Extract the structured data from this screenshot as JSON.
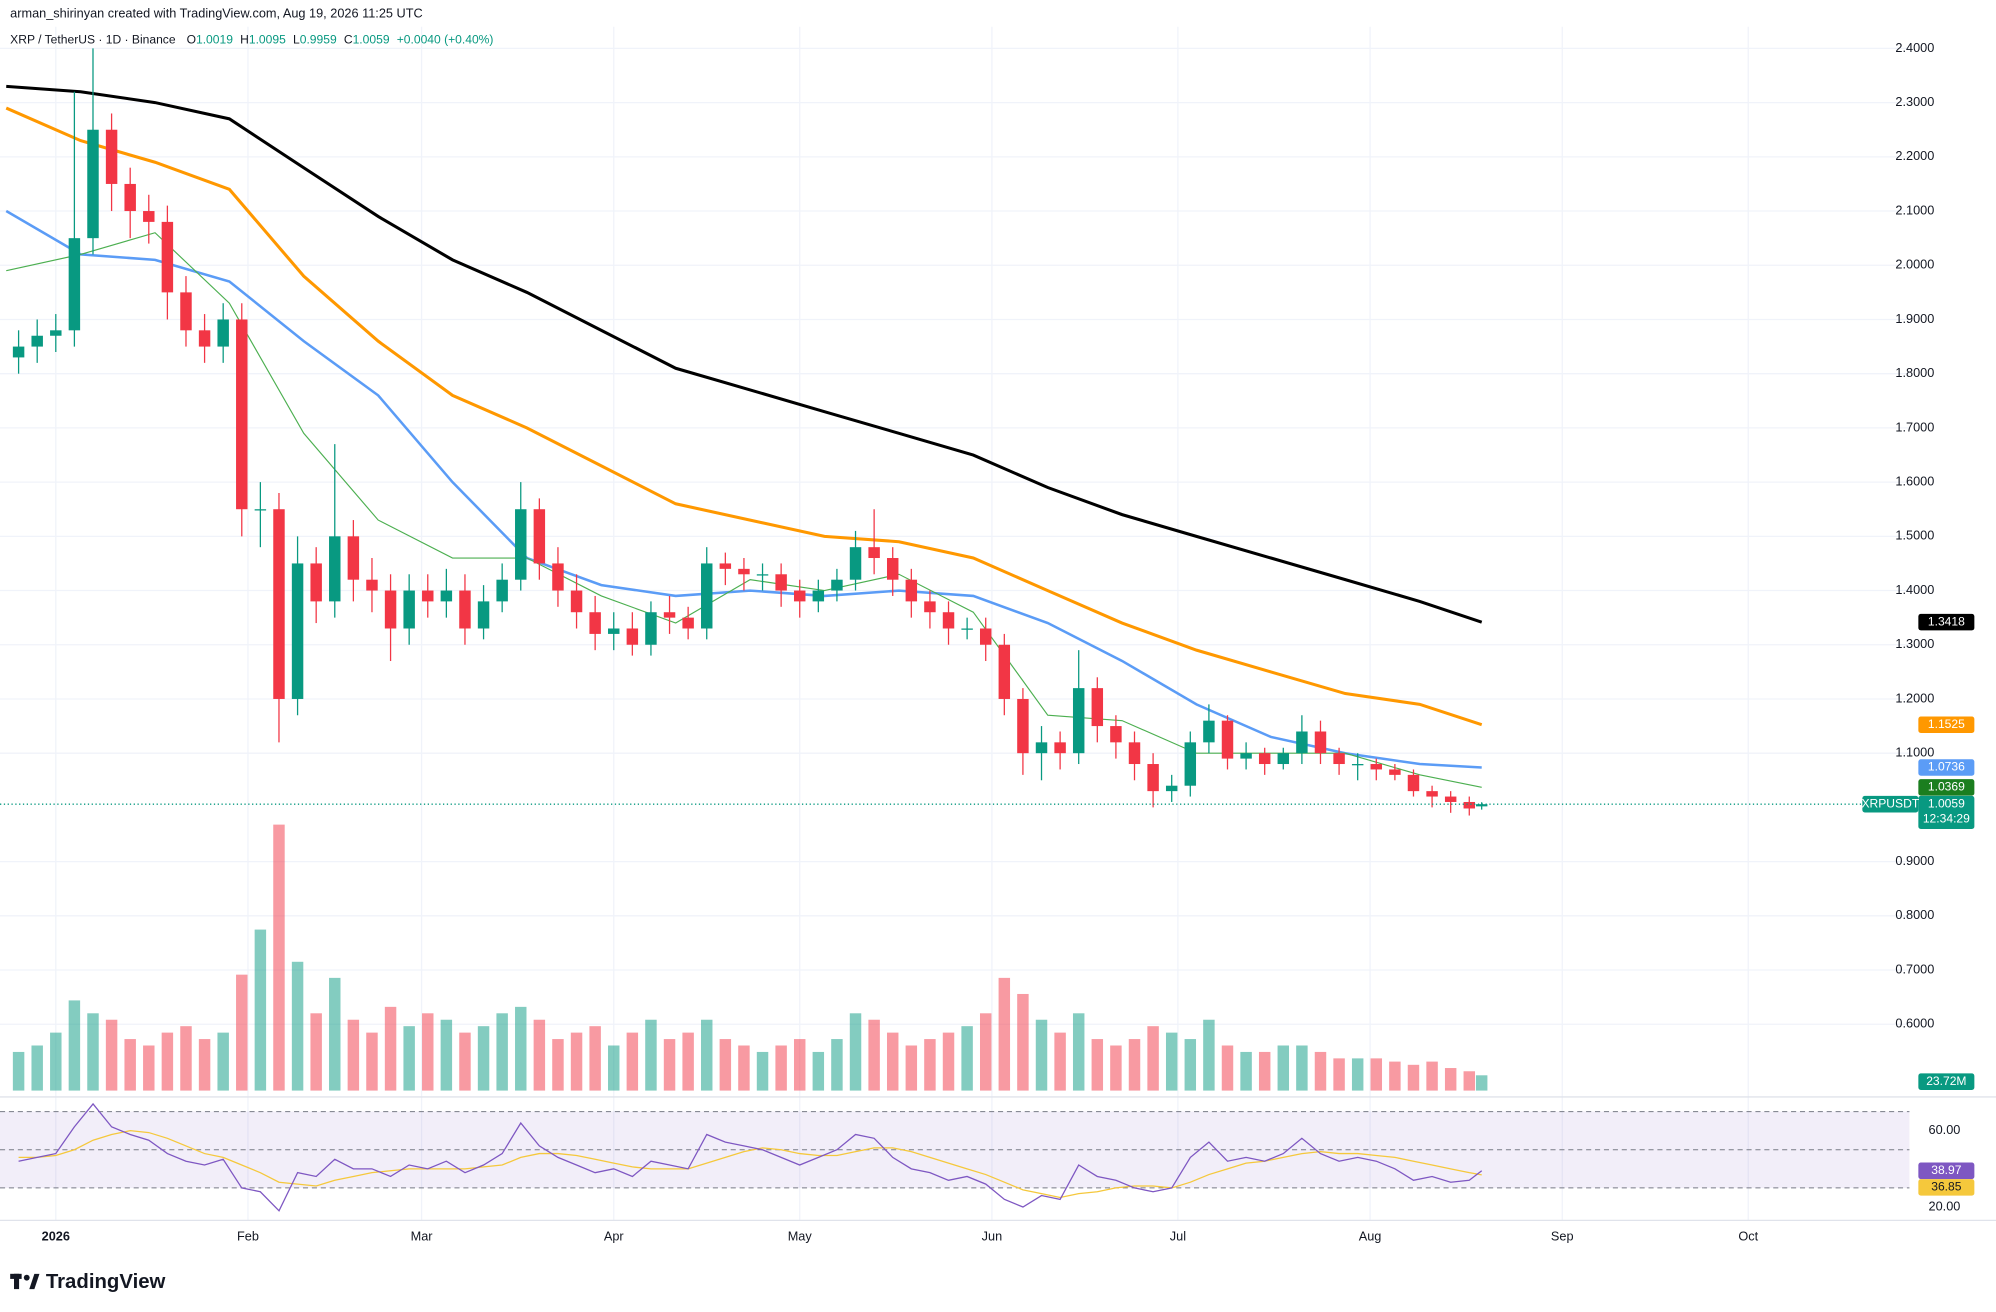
{
  "header": {
    "watermark": "arman_shirinyan created with TradingView.com, Aug 19, 2026 11:25 UTC",
    "symbol": "XRP / TetherUS · 1D · Binance",
    "legend": [
      {
        "key": "O",
        "value": "1.0019"
      },
      {
        "key": "H",
        "value": "1.0095"
      },
      {
        "key": "L",
        "value": "0.9959"
      },
      {
        "key": "C",
        "value": "1.0059"
      }
    ],
    "change": "+0.0040 (+0.40%)"
  },
  "footer": {
    "brand": "TradingView"
  },
  "chart_data": {
    "type": "candlestick",
    "colors": {
      "up": "#089981",
      "down": "#f23645"
    },
    "x": [
      -6,
      -3,
      0,
      3,
      6,
      9,
      12,
      15,
      18,
      21,
      24,
      27,
      30,
      33,
      36,
      39,
      42,
      45,
      48,
      51,
      54,
      57,
      60,
      63,
      66,
      69,
      72,
      75,
      78,
      81,
      84,
      87,
      90,
      93,
      96,
      99,
      102,
      105,
      108,
      111,
      114,
      117,
      120,
      123,
      126,
      129,
      132,
      135,
      138,
      141,
      144,
      147,
      150,
      153,
      156,
      159,
      162,
      165,
      168,
      171,
      174,
      177,
      180,
      183,
      186,
      189,
      192,
      195,
      198,
      201,
      204,
      207,
      210,
      213,
      216,
      219,
      222,
      225,
      228,
      230
    ],
    "open": [
      1.83,
      1.85,
      1.87,
      1.88,
      2.05,
      2.25,
      2.15,
      2.1,
      2.08,
      1.95,
      1.88,
      1.85,
      1.9,
      1.55,
      1.55,
      1.2,
      1.45,
      1.38,
      1.5,
      1.42,
      1.4,
      1.33,
      1.4,
      1.38,
      1.4,
      1.33,
      1.38,
      1.42,
      1.55,
      1.45,
      1.4,
      1.36,
      1.32,
      1.33,
      1.3,
      1.36,
      1.35,
      1.33,
      1.45,
      1.44,
      1.43,
      1.43,
      1.4,
      1.38,
      1.4,
      1.42,
      1.48,
      1.46,
      1.42,
      1.38,
      1.36,
      1.33,
      1.33,
      1.3,
      1.2,
      1.1,
      1.12,
      1.1,
      1.22,
      1.15,
      1.12,
      1.08,
      1.03,
      1.04,
      1.12,
      1.16,
      1.09,
      1.1,
      1.08,
      1.1,
      1.14,
      1.1,
      1.08,
      1.08,
      1.07,
      1.06,
      1.03,
      1.02,
      1.01,
      1.0019
    ],
    "high": [
      1.88,
      1.9,
      1.91,
      2.32,
      2.4,
      2.28,
      2.18,
      2.13,
      2.11,
      1.98,
      1.91,
      1.93,
      1.93,
      1.6,
      1.58,
      1.5,
      1.48,
      1.67,
      1.53,
      1.46,
      1.43,
      1.43,
      1.43,
      1.44,
      1.43,
      1.41,
      1.45,
      1.6,
      1.57,
      1.48,
      1.43,
      1.39,
      1.36,
      1.36,
      1.38,
      1.39,
      1.37,
      1.48,
      1.47,
      1.46,
      1.45,
      1.45,
      1.42,
      1.42,
      1.44,
      1.51,
      1.55,
      1.48,
      1.44,
      1.4,
      1.38,
      1.35,
      1.35,
      1.32,
      1.22,
      1.15,
      1.14,
      1.29,
      1.24,
      1.17,
      1.14,
      1.1,
      1.06,
      1.14,
      1.19,
      1.17,
      1.12,
      1.11,
      1.11,
      1.17,
      1.16,
      1.11,
      1.1,
      1.09,
      1.08,
      1.07,
      1.04,
      1.03,
      1.02,
      1.0095
    ],
    "low": [
      1.8,
      1.82,
      1.84,
      1.85,
      2.02,
      2.1,
      2.05,
      2.04,
      1.9,
      1.85,
      1.82,
      1.82,
      1.5,
      1.48,
      1.12,
      1.17,
      1.34,
      1.35,
      1.38,
      1.36,
      1.27,
      1.3,
      1.35,
      1.35,
      1.3,
      1.31,
      1.36,
      1.4,
      1.42,
      1.37,
      1.33,
      1.29,
      1.29,
      1.28,
      1.28,
      1.32,
      1.31,
      1.31,
      1.41,
      1.4,
      1.4,
      1.37,
      1.35,
      1.36,
      1.38,
      1.4,
      1.43,
      1.39,
      1.35,
      1.33,
      1.3,
      1.31,
      1.27,
      1.17,
      1.06,
      1.05,
      1.07,
      1.08,
      1.12,
      1.09,
      1.05,
      1.0,
      1.01,
      1.02,
      1.1,
      1.07,
      1.07,
      1.06,
      1.07,
      1.08,
      1.08,
      1.06,
      1.05,
      1.05,
      1.05,
      1.02,
      1.0,
      0.99,
      0.985,
      0.9959
    ],
    "close": [
      1.85,
      1.87,
      1.88,
      2.05,
      2.25,
      2.15,
      2.1,
      2.08,
      1.95,
      1.88,
      1.85,
      1.9,
      1.55,
      1.55,
      1.2,
      1.45,
      1.38,
      1.5,
      1.42,
      1.4,
      1.33,
      1.4,
      1.38,
      1.4,
      1.33,
      1.38,
      1.42,
      1.55,
      1.45,
      1.4,
      1.36,
      1.32,
      1.33,
      1.3,
      1.36,
      1.35,
      1.33,
      1.45,
      1.44,
      1.43,
      1.43,
      1.4,
      1.38,
      1.4,
      1.42,
      1.48,
      1.46,
      1.42,
      1.38,
      1.36,
      1.33,
      1.33,
      1.3,
      1.2,
      1.1,
      1.12,
      1.1,
      1.22,
      1.15,
      1.12,
      1.08,
      1.03,
      1.04,
      1.12,
      1.16,
      1.09,
      1.1,
      1.08,
      1.1,
      1.14,
      1.1,
      1.08,
      1.08,
      1.07,
      1.06,
      1.03,
      1.02,
      1.01,
      0.998,
      1.0059
    ],
    "symbol_tag": "XRPUSDT",
    "countdown": "12:34:29",
    "ma_x": [
      -8,
      4,
      16,
      28,
      40,
      52,
      64,
      76,
      88,
      100,
      112,
      124,
      136,
      148,
      160,
      172,
      184,
      196,
      208,
      220,
      230
    ],
    "ma": [
      {
        "color": "#000000",
        "values": [
          2.33,
          2.32,
          2.3,
          2.27,
          2.18,
          2.09,
          2.01,
          1.95,
          1.88,
          1.81,
          1.77,
          1.73,
          1.69,
          1.65,
          1.59,
          1.54,
          1.5,
          1.46,
          1.42,
          1.38,
          1.3418
        ]
      },
      {
        "color": "#ff9800",
        "values": [
          2.29,
          2.23,
          2.19,
          2.14,
          1.98,
          1.86,
          1.76,
          1.7,
          1.63,
          1.56,
          1.53,
          1.5,
          1.49,
          1.46,
          1.4,
          1.34,
          1.29,
          1.25,
          1.21,
          1.19,
          1.1525
        ]
      },
      {
        "color": "#5b9cf6",
        "values": [
          2.1,
          2.02,
          2.01,
          1.97,
          1.86,
          1.76,
          1.6,
          1.46,
          1.41,
          1.39,
          1.4,
          1.39,
          1.4,
          1.39,
          1.34,
          1.27,
          1.19,
          1.13,
          1.1,
          1.08,
          1.0736
        ]
      },
      {
        "color": "#4caf50",
        "values": [
          1.99,
          2.02,
          2.06,
          1.93,
          1.69,
          1.53,
          1.46,
          1.46,
          1.39,
          1.34,
          1.42,
          1.4,
          1.43,
          1.36,
          1.17,
          1.16,
          1.1,
          1.1,
          1.1,
          1.06,
          1.0369
        ]
      }
    ],
    "volume": {
      "values": [
        60,
        70,
        90,
        140,
        120,
        110,
        80,
        70,
        90,
        100,
        80,
        90,
        180,
        250,
        413,
        200,
        120,
        175,
        110,
        90,
        130,
        100,
        120,
        110,
        90,
        100,
        120,
        130,
        110,
        80,
        90,
        100,
        70,
        90,
        110,
        80,
        90,
        110,
        80,
        70,
        60,
        70,
        80,
        60,
        80,
        120,
        110,
        90,
        70,
        80,
        90,
        100,
        120,
        175,
        150,
        110,
        90,
        120,
        80,
        70,
        80,
        100,
        90,
        80,
        110,
        70,
        60,
        60,
        70,
        70,
        60,
        50,
        50,
        50,
        45,
        40,
        45,
        35,
        30,
        23.72
      ],
      "last_label": "23.72M"
    },
    "xlim": [
      -9,
      299
    ],
    "xticks": [
      {
        "value": 0,
        "label": "2026"
      },
      {
        "value": 31,
        "label": "Feb"
      },
      {
        "value": 59,
        "label": "Mar"
      },
      {
        "value": 90,
        "label": "Apr"
      },
      {
        "value": 120,
        "label": "May"
      },
      {
        "value": 151,
        "label": "Jun"
      },
      {
        "value": 181,
        "label": "Jul"
      },
      {
        "value": 212,
        "label": "Aug"
      },
      {
        "value": 243,
        "label": "Sep"
      },
      {
        "value": 273,
        "label": "Oct"
      }
    ],
    "ylim": [
      0.48,
      2.44
    ],
    "yticks": [
      {
        "value": 0.6,
        "label": "0.6000"
      },
      {
        "value": 0.7,
        "label": "0.7000"
      },
      {
        "value": 0.8,
        "label": "0.8000"
      },
      {
        "value": 0.9,
        "label": "0.9000"
      },
      {
        "value": 1.1,
        "label": "1.1000"
      },
      {
        "value": 1.2,
        "label": "1.2000"
      },
      {
        "value": 1.3,
        "label": "1.3000"
      },
      {
        "value": 1.4,
        "label": "1.4000"
      },
      {
        "value": 1.5,
        "label": "1.5000"
      },
      {
        "value": 1.6,
        "label": "1.6000"
      },
      {
        "value": 1.7,
        "label": "1.7000"
      },
      {
        "value": 1.8,
        "label": "1.8000"
      },
      {
        "value": 1.9,
        "label": "1.9000"
      },
      {
        "value": 2.0,
        "label": "2.0000"
      },
      {
        "value": 2.1,
        "label": "2.1000"
      },
      {
        "value": 2.2,
        "label": "2.2000"
      },
      {
        "value": 2.3,
        "label": "2.3000"
      },
      {
        "value": 2.4,
        "label": "2.4000"
      }
    ],
    "grid": true,
    "rsi": {
      "color": "#7e57c2",
      "ylim": [
        15,
        75
      ],
      "yticks": [
        {
          "value": 20,
          "label": "20.00"
        },
        {
          "value": 60,
          "label": "60.00"
        }
      ],
      "levels": [
        30,
        50,
        70
      ],
      "values": [
        44,
        46,
        48,
        62,
        74,
        62,
        58,
        55,
        48,
        44,
        42,
        45,
        30,
        28,
        18,
        38,
        36,
        45,
        40,
        40,
        36,
        42,
        40,
        44,
        38,
        42,
        48,
        64,
        52,
        46,
        42,
        38,
        40,
        36,
        44,
        42,
        40,
        58,
        54,
        52,
        50,
        46,
        42,
        46,
        50,
        58,
        56,
        46,
        40,
        38,
        34,
        36,
        32,
        24,
        20,
        26,
        24,
        42,
        36,
        34,
        30,
        28,
        30,
        46,
        54,
        44,
        46,
        44,
        48,
        56,
        48,
        44,
        46,
        44,
        40,
        34,
        36,
        33,
        34,
        38.97
      ],
      "ma": {
        "color": "#f5c83c",
        "values": [
          46,
          46,
          47,
          50,
          55,
          58,
          60,
          59,
          56,
          52,
          48,
          46,
          42,
          38,
          33,
          32,
          31,
          34,
          36,
          38,
          39,
          40,
          40,
          40,
          40,
          41,
          42,
          46,
          48,
          48,
          47,
          45,
          43,
          41,
          40,
          40,
          40,
          43,
          46,
          49,
          51,
          50,
          48,
          47,
          47,
          49,
          51,
          51,
          49,
          46,
          43,
          40,
          37,
          33,
          29,
          27,
          25,
          27,
          28,
          30,
          31,
          31,
          30,
          33,
          37,
          40,
          43,
          44,
          46,
          48,
          49,
          48,
          48,
          47,
          46,
          44,
          42,
          40,
          38,
          36.85
        ]
      }
    }
  }
}
